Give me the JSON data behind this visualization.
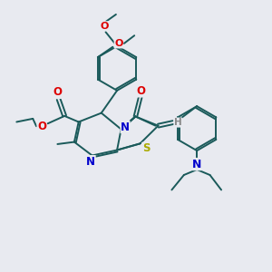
{
  "background_color": "#e8eaf0",
  "bond_color": "#1a5a5a",
  "bond_width": 1.4,
  "atom_colors": {
    "O": "#dd0000",
    "N": "#0000cc",
    "S": "#aaaa00",
    "H": "#888888"
  },
  "figsize": [
    3.0,
    3.0
  ],
  "dpi": 100,
  "xlim": [
    0,
    10
  ],
  "ylim": [
    0,
    10
  ]
}
